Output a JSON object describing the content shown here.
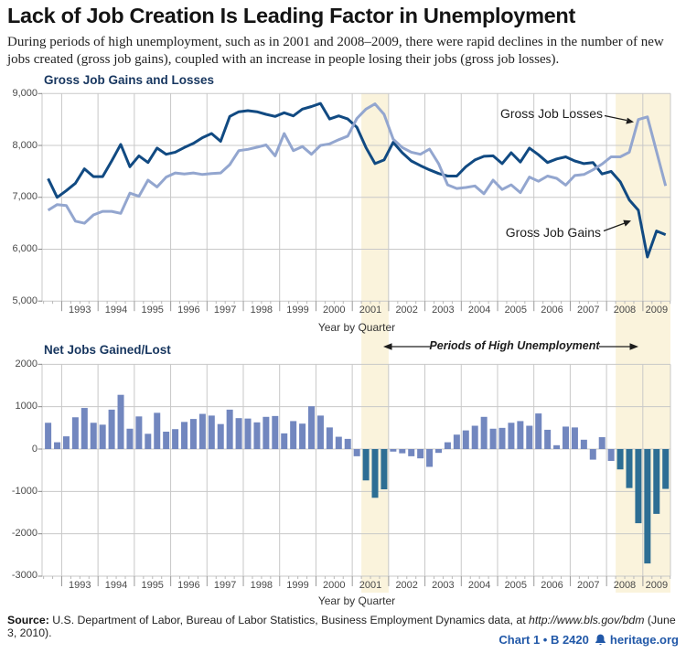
{
  "page": {
    "title": "Lack of Job Creation Is Leading Factor in Unemployment",
    "intro": "During periods of high unemployment, such as in 2001 and 2008–2009, there were rapid declines in the number of new jobs created (gross job gains), coupled with an increase in people losing their jobs (gross job losses)."
  },
  "top_chart": {
    "heading": "Gross Job Gains and Losses",
    "xaxis_label": "Year by Quarter",
    "yticks": [
      "9,000",
      "8,000",
      "7,000",
      "6,000",
      "5,000"
    ],
    "labels": {
      "losses": "Gross Job Losses",
      "gains": "Gross Job Gains"
    }
  },
  "bottom_chart": {
    "heading": "Net Jobs Gained/Lost",
    "xaxis_label": "Year by Quarter",
    "yticks": [
      "2000",
      "1000",
      "0",
      "-1000",
      "-2000",
      "-3000"
    ]
  },
  "annotation": "Periods of High Unemployment",
  "footer": {
    "source_label": "Source:",
    "source_pre": "U.S. Department of Labor, Bureau of Labor Statistics, Business Employment Dynamics data, at ",
    "source_url": "http://www.bls.gov/bdm",
    "source_post": " (June 3, 2010).",
    "chart_ref": "Chart 1 • B 2420",
    "site": "heritage.org"
  },
  "colors": {
    "gains_line": "#114a82",
    "losses_line": "#93a6cf",
    "bar_positive": "#7287bf",
    "bar_recession": "#2d6e94",
    "band": "#faf3dc",
    "grid": "#c8c8c8",
    "tick": "#9a9a9a",
    "footer_blue": "#2158a8"
  },
  "chart_data": [
    {
      "type": "line",
      "title": "Gross Job Gains and Losses",
      "x_unit": "quarter",
      "x_start": "1992 Q3",
      "x_end": "2009 Q3",
      "year_labels": [
        "1993",
        "1994",
        "1995",
        "1996",
        "1997",
        "1998",
        "1999",
        "2000",
        "2001",
        "2002",
        "2003",
        "2004",
        "2005",
        "2006",
        "2007",
        "2008",
        "2009"
      ],
      "ylim": [
        5000,
        9000
      ],
      "ytick_values": [
        9000,
        8000,
        7000,
        6000,
        5000
      ],
      "grid": true,
      "highlight_bands": [
        {
          "label": "2001 recession",
          "from": "2001 Q2",
          "to": "2001 Q4"
        },
        {
          "label": "2008-09 recession",
          "from": "2008 Q2",
          "to": "2009 Q3"
        }
      ],
      "series": [
        {
          "name": "Gross Job Gains",
          "values": [
            7360,
            7000,
            7130,
            7270,
            7550,
            7400,
            7400,
            7700,
            8020,
            7590,
            7800,
            7670,
            7950,
            7830,
            7870,
            7960,
            8040,
            8150,
            8230,
            8080,
            8560,
            8650,
            8670,
            8650,
            8600,
            8560,
            8630,
            8570,
            8700,
            8750,
            8810,
            8510,
            8570,
            8510,
            8350,
            7960,
            7650,
            7720,
            8060,
            7860,
            7700,
            7610,
            7530,
            7460,
            7410,
            7410,
            7590,
            7720,
            7790,
            7800,
            7650,
            7860,
            7680,
            7950,
            7820,
            7670,
            7740,
            7780,
            7700,
            7650,
            7670,
            7450,
            7500,
            7300,
            6950,
            6750,
            5850,
            6350,
            6280
          ]
        },
        {
          "name": "Gross Job Losses",
          "values": [
            6750,
            6860,
            6840,
            6540,
            6500,
            6660,
            6730,
            6730,
            6690,
            7080,
            7020,
            7330,
            7200,
            7390,
            7470,
            7450,
            7470,
            7440,
            7460,
            7470,
            7630,
            7900,
            7925,
            7965,
            8010,
            7800,
            8230,
            7900,
            7980,
            7830,
            8000,
            8030,
            8110,
            8180,
            8520,
            8700,
            8800,
            8600,
            8120,
            7960,
            7870,
            7830,
            7930,
            7650,
            7240,
            7170,
            7190,
            7220,
            7070,
            7330,
            7150,
            7240,
            7090,
            7390,
            7310,
            7410,
            7365,
            7235,
            7420,
            7440,
            7530,
            7640,
            7780,
            7780,
            7870,
            8500,
            8550,
            7880,
            7220
          ]
        }
      ]
    },
    {
      "type": "bar",
      "title": "Net Jobs Gained/Lost",
      "x_unit": "quarter",
      "x_start": "1992 Q3",
      "x_end": "2009 Q3",
      "ylim": [
        -3000,
        2000
      ],
      "ytick_values": [
        2000,
        1000,
        0,
        -1000,
        -2000,
        -3000
      ],
      "grid": true,
      "values": [
        620,
        160,
        300,
        750,
        970,
        620,
        575,
        930,
        1280,
        480,
        770,
        360,
        855,
        410,
        470,
        640,
        710,
        830,
        790,
        590,
        930,
        730,
        720,
        630,
        760,
        780,
        370,
        660,
        600,
        1010,
        790,
        510,
        290,
        240,
        -170,
        -740,
        -1150,
        -950,
        -60,
        -100,
        -170,
        -220,
        -420,
        -90,
        160,
        340,
        440,
        550,
        760,
        480,
        500,
        620,
        660,
        550,
        840,
        455,
        90,
        530,
        510,
        220,
        -250,
        280,
        -280,
        -480,
        -920,
        -1750,
        -2700,
        -1530,
        -940
      ]
    }
  ]
}
